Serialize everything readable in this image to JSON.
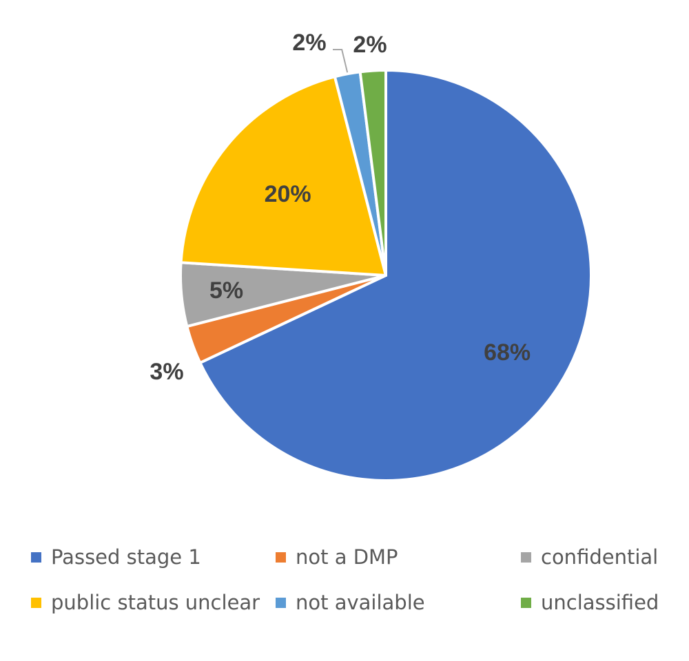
{
  "chart_data": {
    "type": "pie",
    "title": "",
    "start_angle_deg": 0,
    "direction": "clockwise",
    "slices": [
      {
        "name": "Passed stage 1",
        "value": 68,
        "label": "68%",
        "color": "#4472C4"
      },
      {
        "name": "not a DMP",
        "value": 3,
        "label": "3%",
        "color": "#ED7D31"
      },
      {
        "name": "confidential",
        "value": 5,
        "label": "5%",
        "color": "#A5A5A5"
      },
      {
        "name": "public status unclear",
        "value": 20,
        "label": "20%",
        "color": "#FFC000"
      },
      {
        "name": "not available",
        "value": 2,
        "label": "2%",
        "color": "#5B9BD5"
      },
      {
        "name": "unclassified",
        "value": 2,
        "label": "2%",
        "color": "#70AD47"
      }
    ],
    "legend_position": "bottom",
    "legend_columns": 3,
    "label_color": "#404040",
    "legend_text_color": "#595959"
  }
}
